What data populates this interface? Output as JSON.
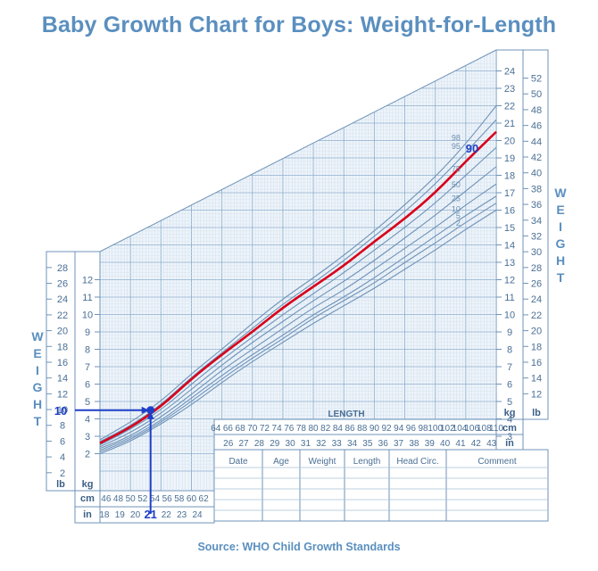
{
  "title": "Baby Growth Chart for Boys: Weight-for-Length",
  "source": "Source: WHO Child Growth Standards",
  "axis_text": {
    "weight_letters": [
      "W",
      "E",
      "I",
      "G",
      "H",
      "T"
    ],
    "length_title": "LENGTH",
    "unit_lb": "lb",
    "unit_kg": "kg",
    "unit_cm": "cm",
    "unit_in": "in"
  },
  "table": {
    "headers": [
      "Date",
      "Age",
      "Weight",
      "Length",
      "Head  Circ.",
      "Comment"
    ]
  },
  "ticks": {
    "kg": [
      "2",
      "3",
      "4",
      "5",
      "6",
      "7",
      "8",
      "9",
      "10",
      "11",
      "12",
      "13",
      "14",
      "15",
      "16",
      "17",
      "18",
      "19",
      "20",
      "21",
      "22",
      "23",
      "24"
    ],
    "lb_left": [
      "2",
      "4",
      "6",
      "8",
      "10",
      "12",
      "14",
      "16",
      "18",
      "20",
      "22",
      "24",
      "26",
      "28"
    ],
    "lb_right": [
      "12",
      "14",
      "16",
      "18",
      "20",
      "22",
      "24",
      "26",
      "28",
      "30",
      "32",
      "34",
      "36",
      "38",
      "40",
      "42",
      "44",
      "46",
      "48",
      "50",
      "52"
    ],
    "cm_lower": [
      "46",
      "48",
      "50",
      "52",
      "54",
      "56",
      "58",
      "60",
      "62"
    ],
    "in_lower": [
      "18",
      "19",
      "20",
      "21",
      "22",
      "23",
      "24"
    ],
    "cm_upper": [
      "64",
      "66",
      "68",
      "70",
      "72",
      "74",
      "76",
      "78",
      "80",
      "82",
      "84",
      "86",
      "88",
      "90",
      "92",
      "94",
      "96",
      "98",
      "100",
      "102",
      "104",
      "106",
      "108",
      "110"
    ],
    "in_upper": [
      "26",
      "27",
      "28",
      "29",
      "30",
      "31",
      "32",
      "33",
      "34",
      "35",
      "36",
      "37",
      "38",
      "39",
      "40",
      "41",
      "42",
      "43"
    ]
  },
  "annotation": {
    "weight_marker": "10",
    "length_marker": "21",
    "percentile_marker": "90",
    "colors": {
      "marker": "#1d3fc7",
      "highlight_curve": "#d8001a",
      "curves": "#6f93b8",
      "grid": "#8fb0cf"
    }
  },
  "chart_data": {
    "type": "line",
    "title": "Baby Growth Chart for Boys: Weight-for-Length",
    "xlabel": "LENGTH",
    "ylabel": "WEIGHT",
    "x_unit": "cm",
    "y_unit": "kg",
    "xlim": [
      45,
      110
    ],
    "ylim": [
      1,
      24.5
    ],
    "grid": true,
    "x": [
      45,
      50,
      55,
      60,
      65,
      70,
      75,
      80,
      85,
      90,
      95,
      100,
      105,
      110
    ],
    "series": [
      {
        "name": "98",
        "values": [
          2.8,
          3.8,
          5.0,
          6.6,
          8.0,
          9.5,
          10.9,
          12.1,
          13.4,
          14.8,
          16.3,
          17.9,
          19.8,
          22.0
        ]
      },
      {
        "name": "95",
        "values": [
          2.7,
          3.6,
          4.8,
          6.4,
          7.8,
          9.2,
          10.6,
          11.8,
          13.1,
          14.5,
          15.9,
          17.5,
          19.3,
          21.2
        ]
      },
      {
        "name": "90",
        "values": [
          2.6,
          3.5,
          4.7,
          6.3,
          7.7,
          9.0,
          10.4,
          11.6,
          12.8,
          14.2,
          15.5,
          17.0,
          18.8,
          20.5
        ]
      },
      {
        "name": "75",
        "values": [
          2.5,
          3.4,
          4.5,
          6.0,
          7.4,
          8.7,
          10.0,
          11.2,
          12.4,
          13.7,
          15.0,
          16.4,
          18.0,
          19.6
        ]
      },
      {
        "name": "50",
        "values": [
          2.4,
          3.2,
          4.3,
          5.7,
          7.1,
          8.4,
          9.6,
          10.8,
          11.9,
          13.1,
          14.4,
          15.7,
          17.1,
          18.5
        ]
      },
      {
        "name": "25",
        "values": [
          2.3,
          3.0,
          4.1,
          5.4,
          6.8,
          8.0,
          9.2,
          10.4,
          11.4,
          12.6,
          13.8,
          15.0,
          16.3,
          17.5
        ]
      },
      {
        "name": "10",
        "values": [
          2.2,
          2.9,
          3.9,
          5.2,
          6.5,
          7.7,
          8.8,
          10.0,
          11.0,
          12.1,
          13.3,
          14.5,
          15.7,
          16.8
        ]
      },
      {
        "name": "5",
        "values": [
          2.1,
          2.8,
          3.8,
          5.0,
          6.3,
          7.5,
          8.6,
          9.8,
          10.8,
          11.8,
          13.0,
          14.1,
          15.3,
          16.4
        ]
      },
      {
        "name": "2",
        "values": [
          2.0,
          2.7,
          3.7,
          4.8,
          6.1,
          7.3,
          8.4,
          9.5,
          10.5,
          11.5,
          12.6,
          13.7,
          14.9,
          16.0
        ]
      }
    ],
    "highlight_series": "90",
    "marked_point": {
      "length_in": 21,
      "length_cm": 53.3,
      "weight_lb": 10,
      "weight_kg": 4.5
    }
  }
}
